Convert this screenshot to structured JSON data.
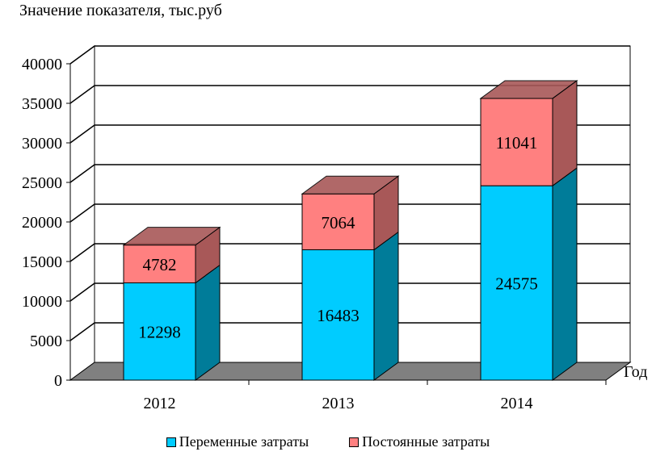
{
  "chart_data": {
    "type": "bar",
    "stacked": true,
    "three_d": true,
    "categories": [
      "2012",
      "2013",
      "2014"
    ],
    "series": [
      {
        "name": "Переменные затраты",
        "values": [
          12298,
          16483,
          24575
        ],
        "color": "#00CCFF",
        "side_color": "#007C99"
      },
      {
        "name": "Постоянные затраты",
        "values": [
          4782,
          7064,
          11041
        ],
        "color": "#FF8080",
        "side_color": "#A85858"
      }
    ],
    "ylabel": "Значение показателя, тыс.руб",
    "xlabel": "Год",
    "ylim": [
      0,
      40000
    ],
    "yticks": [
      0,
      5000,
      10000,
      15000,
      20000,
      25000,
      30000,
      35000,
      40000
    ],
    "grid": true,
    "legend_position": "bottom",
    "floor_color": "#808080"
  }
}
